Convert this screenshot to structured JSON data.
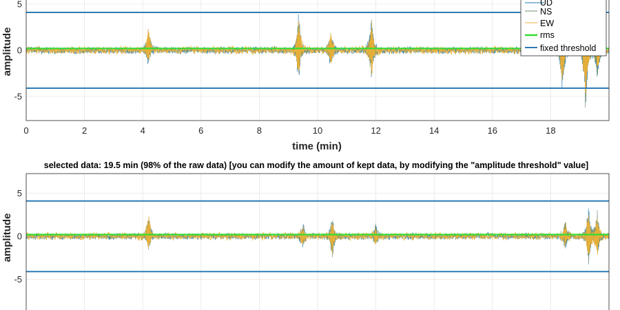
{
  "chart_data": [
    {
      "type": "line",
      "title": "",
      "xlabel": "time (min)",
      "ylabel": "amplitude",
      "xlim": [
        0,
        20
      ],
      "ylim": [
        -7.5,
        7.5
      ],
      "xticks": [
        0,
        2,
        4,
        6,
        8,
        10,
        12,
        14,
        16,
        18
      ],
      "yticks": [
        -5,
        0,
        5
      ],
      "grid": true,
      "legend_position": "top-right",
      "legend": [
        "UD",
        "NS",
        "EW",
        "rms",
        "fixed threshold"
      ],
      "colors": {
        "UD": "#1f77b4",
        "NS": "#6b8e6b",
        "EW": "#f2b134",
        "rms": "#33dd33",
        "threshold": "#2c7bb6"
      },
      "series": [
        {
          "name": "UD",
          "kind": "signal",
          "noise_amplitude": 0.3
        },
        {
          "name": "NS",
          "kind": "signal",
          "noise_amplitude": 0.3
        },
        {
          "name": "EW",
          "kind": "signal",
          "noise_amplitude": 0.35
        },
        {
          "name": "rms",
          "kind": "level",
          "value": 0.2
        },
        {
          "name": "fixed threshold",
          "kind": "threshold",
          "values": [
            4.1,
            -4.1
          ]
        }
      ],
      "peaks": [
        {
          "t": 4.2,
          "up": 3.4,
          "down": -1.6
        },
        {
          "t": 9.35,
          "up": 4.6,
          "down": -4.0
        },
        {
          "t": 10.45,
          "up": 2.4,
          "down": -2.3
        },
        {
          "t": 11.85,
          "up": 4.2,
          "down": -3.5
        },
        {
          "t": 18.4,
          "up": 1.5,
          "down": -5.1
        },
        {
          "t": 19.2,
          "up": 2.5,
          "down": -7.2
        },
        {
          "t": 19.6,
          "up": 1.2,
          "down": -3.5
        }
      ]
    },
    {
      "type": "line",
      "title": "selected data: 19.5 min (98% of the raw data) [you can modify the amount of kept data, by modifying the \"amplitude threshold\" value]",
      "xlabel": "",
      "ylabel": "amplitude",
      "xlim": [
        0,
        20
      ],
      "ylim": [
        -7.5,
        7.5
      ],
      "yticks": [
        -5,
        0,
        5
      ],
      "grid": true,
      "colors": {
        "UD": "#1f77b4",
        "NS": "#6b8e6b",
        "EW": "#f2b134",
        "rms": "#33dd33",
        "threshold": "#2c7bb6"
      },
      "series": [
        {
          "name": "UD",
          "kind": "signal",
          "noise_amplitude": 0.3
        },
        {
          "name": "NS",
          "kind": "signal",
          "noise_amplitude": 0.3
        },
        {
          "name": "EW",
          "kind": "signal",
          "noise_amplitude": 0.35
        },
        {
          "name": "rms",
          "kind": "level",
          "value": 0.2
        },
        {
          "name": "fixed threshold",
          "kind": "threshold",
          "values": [
            4.1,
            -4.1
          ]
        }
      ],
      "peaks": [
        {
          "t": 4.2,
          "up": 3.3,
          "down": -2.0
        },
        {
          "t": 9.5,
          "up": 1.6,
          "down": -1.5
        },
        {
          "t": 10.5,
          "up": 2.6,
          "down": -2.9
        },
        {
          "t": 12.0,
          "up": 1.5,
          "down": -1.3
        },
        {
          "t": 18.5,
          "up": 2.1,
          "down": -1.8
        },
        {
          "t": 19.3,
          "up": 3.7,
          "down": -3.5
        },
        {
          "t": 19.6,
          "up": 3.1,
          "down": -2.8
        }
      ]
    }
  ]
}
